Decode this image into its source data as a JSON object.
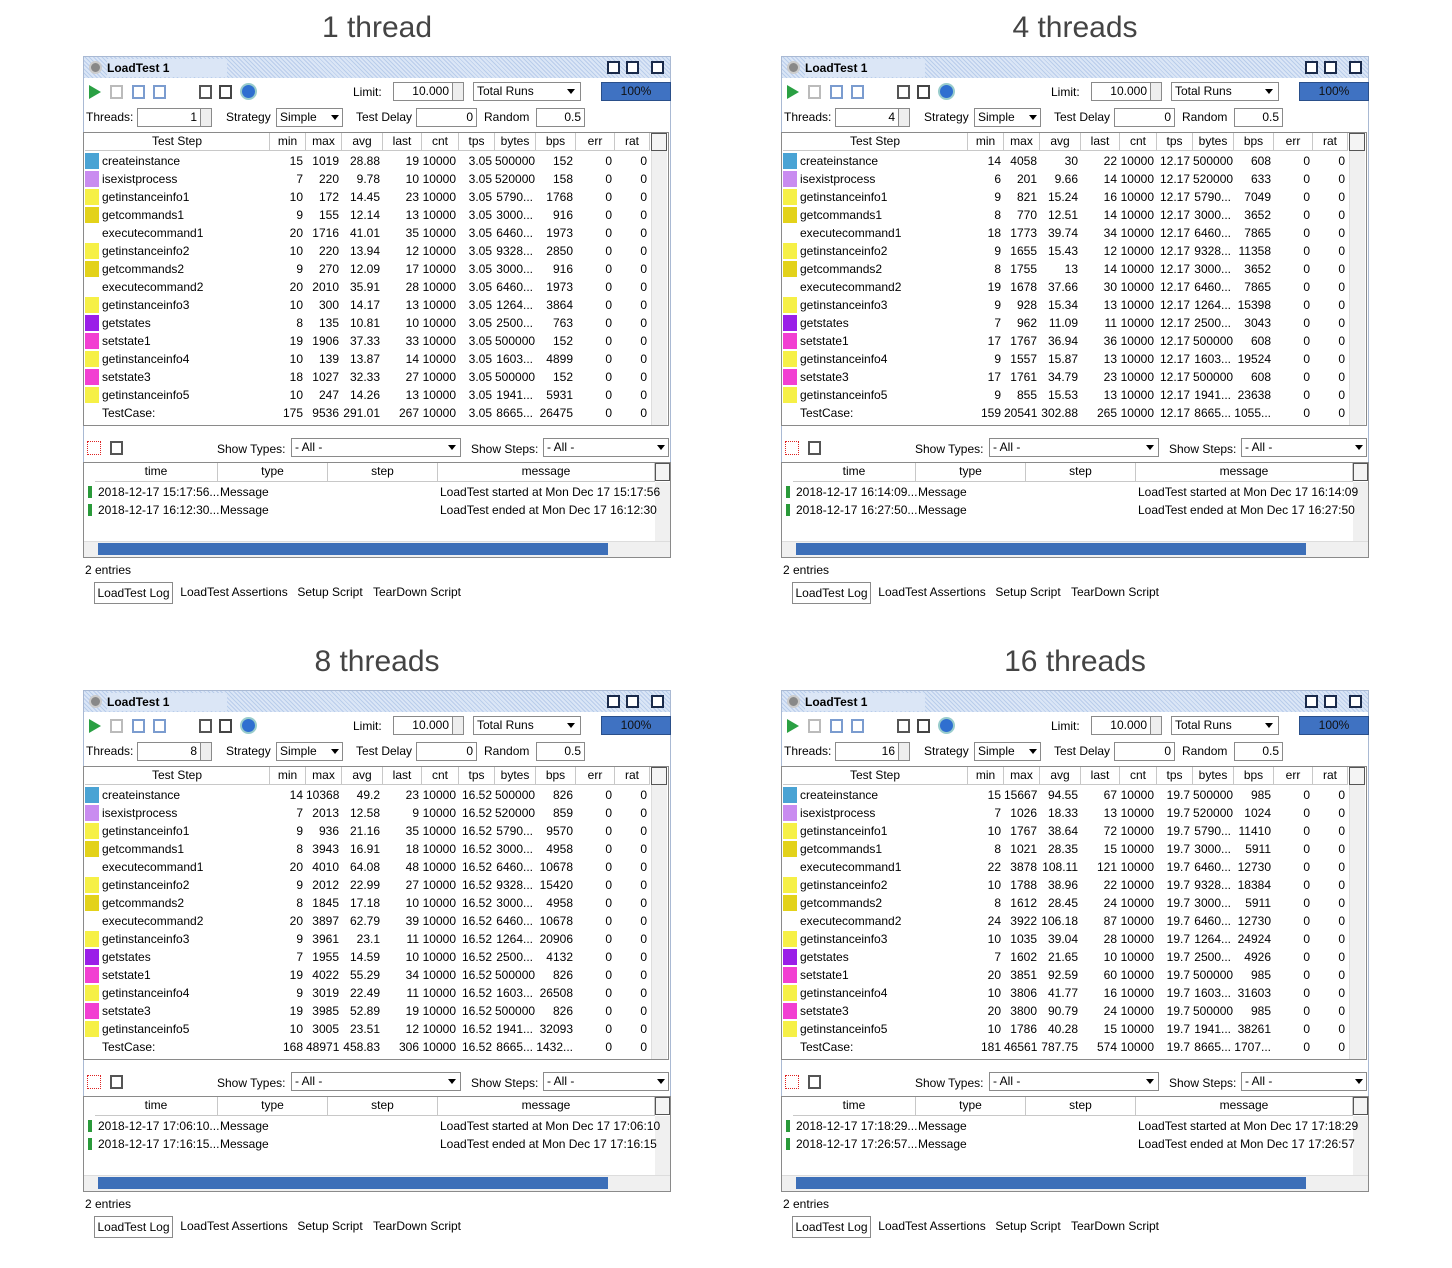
{
  "panels": [
    {
      "heading": "1 thread",
      "threads": 1,
      "rows": [
        [
          15,
          1019,
          28.88,
          19,
          10000,
          3.05,
          500000,
          152,
          0,
          0
        ],
        [
          7,
          220,
          9.78,
          10,
          10000,
          3.05,
          520000,
          158,
          0,
          0
        ],
        [
          10,
          172,
          14.45,
          23,
          10000,
          3.05,
          "5790...",
          1768,
          0,
          0
        ],
        [
          9,
          155,
          12.14,
          13,
          10000,
          3.05,
          "3000...",
          916,
          0,
          0
        ],
        [
          20,
          1716,
          41.01,
          35,
          10000,
          3.05,
          "6460...",
          1973,
          0,
          0
        ],
        [
          10,
          220,
          13.94,
          12,
          10000,
          3.05,
          "9328...",
          2850,
          0,
          0
        ],
        [
          9,
          270,
          12.09,
          17,
          10000,
          3.05,
          "3000...",
          916,
          0,
          0
        ],
        [
          20,
          2010,
          35.91,
          28,
          10000,
          3.05,
          "6460...",
          1973,
          0,
          0
        ],
        [
          10,
          300,
          14.17,
          13,
          10000,
          3.05,
          "1264...",
          3864,
          0,
          0
        ],
        [
          8,
          135,
          10.81,
          10,
          10000,
          3.05,
          "2500...",
          763,
          0,
          0
        ],
        [
          19,
          1906,
          37.33,
          33,
          10000,
          3.05,
          500000,
          152,
          0,
          0
        ],
        [
          10,
          139,
          13.87,
          14,
          10000,
          3.05,
          "1603...",
          4899,
          0,
          0
        ],
        [
          18,
          1027,
          32.33,
          27,
          10000,
          3.05,
          500000,
          152,
          0,
          0
        ],
        [
          10,
          247,
          14.26,
          13,
          10000,
          3.05,
          "1941...",
          5931,
          0,
          0
        ],
        [
          175,
          9536,
          291.01,
          267,
          10000,
          3.05,
          "8665...",
          26475,
          0,
          0
        ]
      ],
      "log": [
        [
          "2018-12-17 15:17:56...",
          "Message",
          "LoadTest started at Mon Dec 17 15:17:56"
        ],
        [
          "2018-12-17 16:12:30...",
          "Message",
          "LoadTest ended at Mon Dec 17 16:12:30"
        ]
      ]
    },
    {
      "heading": "4 threads",
      "threads": 4,
      "rows": [
        [
          14,
          4058,
          30,
          22,
          10000,
          12.17,
          500000,
          608,
          0,
          0
        ],
        [
          6,
          201,
          9.66,
          14,
          10000,
          12.17,
          520000,
          633,
          0,
          0
        ],
        [
          9,
          821,
          15.24,
          16,
          10000,
          12.17,
          "5790...",
          7049,
          0,
          0
        ],
        [
          8,
          770,
          12.51,
          14,
          10000,
          12.17,
          "3000...",
          3652,
          0,
          0
        ],
        [
          18,
          1773,
          39.74,
          34,
          10000,
          12.17,
          "6460...",
          7865,
          0,
          0
        ],
        [
          9,
          1655,
          15.43,
          12,
          10000,
          12.17,
          "9328...",
          11358,
          0,
          0
        ],
        [
          8,
          1755,
          13,
          14,
          10000,
          12.17,
          "3000...",
          3652,
          0,
          0
        ],
        [
          19,
          1678,
          37.66,
          30,
          10000,
          12.17,
          "6460...",
          7865,
          0,
          0
        ],
        [
          9,
          928,
          15.34,
          13,
          10000,
          12.17,
          "1264...",
          15398,
          0,
          0
        ],
        [
          7,
          962,
          11.09,
          11,
          10000,
          12.17,
          "2500...",
          3043,
          0,
          0
        ],
        [
          17,
          1767,
          36.94,
          36,
          10000,
          12.17,
          500000,
          608,
          0,
          0
        ],
        [
          9,
          1557,
          15.87,
          13,
          10000,
          12.17,
          "1603...",
          19524,
          0,
          0
        ],
        [
          17,
          1761,
          34.79,
          23,
          10000,
          12.17,
          500000,
          608,
          0,
          0
        ],
        [
          9,
          855,
          15.53,
          13,
          10000,
          12.17,
          "1941...",
          23638,
          0,
          0
        ],
        [
          159,
          20541,
          302.88,
          265,
          10000,
          12.17,
          "8665...",
          "1055...",
          0,
          0
        ]
      ],
      "log": [
        [
          "2018-12-17 16:14:09...",
          "Message",
          "LoadTest started at Mon Dec 17 16:14:09"
        ],
        [
          "2018-12-17 16:27:50...",
          "Message",
          "LoadTest ended at Mon Dec 17 16:27:50"
        ]
      ]
    },
    {
      "heading": "8 threads",
      "threads": 8,
      "rows": [
        [
          14,
          10368,
          49.2,
          23,
          10000,
          16.52,
          500000,
          826,
          0,
          0
        ],
        [
          7,
          2013,
          12.58,
          9,
          10000,
          16.52,
          520000,
          859,
          0,
          0
        ],
        [
          9,
          936,
          21.16,
          35,
          10000,
          16.52,
          "5790...",
          9570,
          0,
          0
        ],
        [
          8,
          3943,
          16.91,
          18,
          10000,
          16.52,
          "3000...",
          4958,
          0,
          0
        ],
        [
          20,
          4010,
          64.08,
          48,
          10000,
          16.52,
          "6460...",
          10678,
          0,
          0
        ],
        [
          9,
          2012,
          22.99,
          27,
          10000,
          16.52,
          "9328...",
          15420,
          0,
          0
        ],
        [
          8,
          1845,
          17.18,
          10,
          10000,
          16.52,
          "3000...",
          4958,
          0,
          0
        ],
        [
          20,
          3897,
          62.79,
          39,
          10000,
          16.52,
          "6460...",
          10678,
          0,
          0
        ],
        [
          9,
          3961,
          23.1,
          11,
          10000,
          16.52,
          "1264...",
          20906,
          0,
          0
        ],
        [
          7,
          1955,
          14.59,
          10,
          10000,
          16.52,
          "2500...",
          4132,
          0,
          0
        ],
        [
          19,
          4022,
          55.29,
          34,
          10000,
          16.52,
          500000,
          826,
          0,
          0
        ],
        [
          9,
          3019,
          22.49,
          11,
          10000,
          16.52,
          "1603...",
          26508,
          0,
          0
        ],
        [
          19,
          3985,
          52.89,
          19,
          10000,
          16.52,
          500000,
          826,
          0,
          0
        ],
        [
          10,
          3005,
          23.51,
          12,
          10000,
          16.52,
          "1941...",
          32093,
          0,
          0
        ],
        [
          168,
          48971,
          458.83,
          306,
          10000,
          16.52,
          "8665...",
          "1432...",
          0,
          0
        ]
      ],
      "log": [
        [
          "2018-12-17 17:06:10...",
          "Message",
          "LoadTest started at Mon Dec 17 17:06:10"
        ],
        [
          "2018-12-17 17:16:15...",
          "Message",
          "LoadTest ended at Mon Dec 17 17:16:15"
        ]
      ]
    },
    {
      "heading": "16 threads",
      "threads": 16,
      "rows": [
        [
          15,
          15667,
          94.55,
          67,
          10000,
          19.7,
          500000,
          985,
          0,
          0
        ],
        [
          7,
          1026,
          18.33,
          13,
          10000,
          19.7,
          520000,
          1024,
          0,
          0
        ],
        [
          10,
          1767,
          38.64,
          72,
          10000,
          19.7,
          "5790...",
          11410,
          0,
          0
        ],
        [
          8,
          1021,
          28.35,
          15,
          10000,
          19.7,
          "3000...",
          5911,
          0,
          0
        ],
        [
          22,
          3878,
          108.11,
          121,
          10000,
          19.7,
          "6460...",
          12730,
          0,
          0
        ],
        [
          10,
          1788,
          38.96,
          22,
          10000,
          19.7,
          "9328...",
          18384,
          0,
          0
        ],
        [
          8,
          1612,
          28.45,
          24,
          10000,
          19.7,
          "3000...",
          5911,
          0,
          0
        ],
        [
          24,
          3922,
          106.18,
          87,
          10000,
          19.7,
          "6460...",
          12730,
          0,
          0
        ],
        [
          10,
          1035,
          39.04,
          28,
          10000,
          19.7,
          "1264...",
          24924,
          0,
          0
        ],
        [
          7,
          1602,
          21.65,
          10,
          10000,
          19.7,
          "2500...",
          4926,
          0,
          0
        ],
        [
          20,
          3851,
          92.59,
          60,
          10000,
          19.7,
          500000,
          985,
          0,
          0
        ],
        [
          10,
          3806,
          41.77,
          16,
          10000,
          19.7,
          "1603...",
          31603,
          0,
          0
        ],
        [
          20,
          3800,
          90.79,
          24,
          10000,
          19.7,
          500000,
          985,
          0,
          0
        ],
        [
          10,
          1786,
          40.28,
          15,
          10000,
          19.7,
          "1941...",
          38261,
          0,
          0
        ],
        [
          181,
          46561,
          787.75,
          574,
          10000,
          19.7,
          "8665...",
          "1707...",
          0,
          0
        ]
      ],
      "log": [
        [
          "2018-12-17 17:18:29...",
          "Message",
          "LoadTest started at Mon Dec 17 17:18:29"
        ],
        [
          "2018-12-17 17:26:57...",
          "Message",
          "LoadTest ended at Mon Dec 17 17:26:57"
        ]
      ]
    }
  ],
  "window": {
    "title": "LoadTest 1",
    "limit_label": "Limit:",
    "limit": "10.000",
    "limit_type": "Total Runs",
    "progress": "100%",
    "threads_label": "Threads:",
    "strategy_label": "Strategy",
    "strategy": "Simple",
    "delay_label": "Test Delay",
    "delay": 0,
    "random_label": "Random",
    "random": 0.5,
    "columns": [
      "Test Step",
      "min",
      "max",
      "avg",
      "last",
      "cnt",
      "tps",
      "bytes",
      "bps",
      "err",
      "rat"
    ],
    "steps": [
      {
        "name": "createinstance",
        "color": "#4aa3d4"
      },
      {
        "name": "isexistprocess",
        "color": "#c98cf0"
      },
      {
        "name": "getinstanceinfo1",
        "color": "#f6f046"
      },
      {
        "name": "getcommands1",
        "color": "#e3d21a"
      },
      {
        "name": "executecommand1",
        "color": null
      },
      {
        "name": "getinstanceinfo2",
        "color": "#f6f046"
      },
      {
        "name": "getcommands2",
        "color": "#e3d21a"
      },
      {
        "name": "executecommand2",
        "color": null
      },
      {
        "name": "getinstanceinfo3",
        "color": "#f6f046"
      },
      {
        "name": "getstates",
        "color": "#9a1ee8"
      },
      {
        "name": "setstate1",
        "color": "#f23fd2"
      },
      {
        "name": "getinstanceinfo4",
        "color": "#f6f046"
      },
      {
        "name": "setstate3",
        "color": "#f23fd2"
      },
      {
        "name": "getinstanceinfo5",
        "color": "#f6f046"
      },
      {
        "name": "TestCase:",
        "color": null
      }
    ],
    "show_types_label": "Show Types:",
    "show_types": "- All -",
    "show_steps_label": "Show Steps:",
    "show_steps": "- All -",
    "log_columns": [
      "time",
      "type",
      "step",
      "message"
    ],
    "entries": "2 entries",
    "tabs": [
      "LoadTest Log",
      "LoadTest Assertions",
      "Setup Script",
      "TearDown Script"
    ]
  }
}
